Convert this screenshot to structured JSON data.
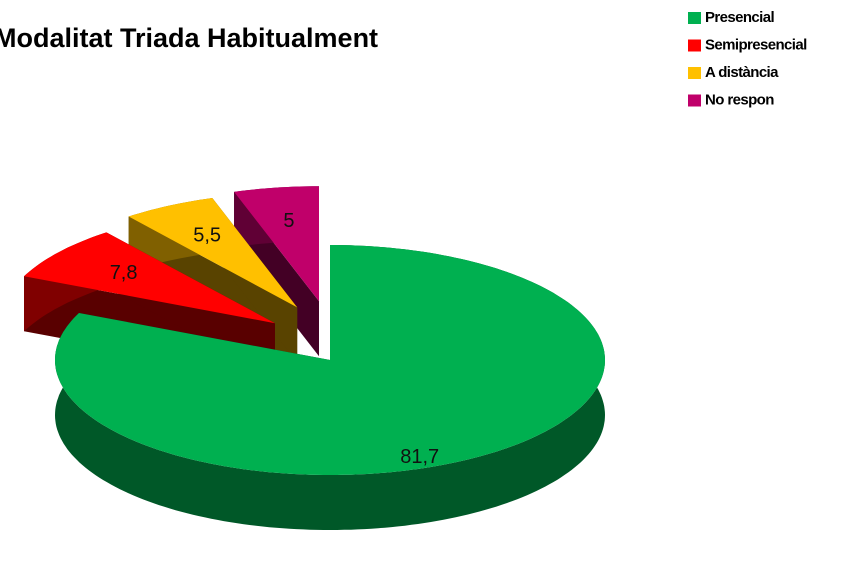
{
  "chart_data": {
    "type": "pie3d",
    "title": "Modalitat Triada Habitualment",
    "categories": [
      "Presencial",
      "Semipresencial",
      "A distància",
      "No respon"
    ],
    "values": [
      81.7,
      7.8,
      5.5,
      5
    ],
    "value_labels": [
      "81,7",
      "7,8",
      "5,5",
      "5"
    ],
    "colors": [
      "#00b050",
      "#ff0000",
      "#ffc000",
      "#c0006a"
    ],
    "legend": "top-right"
  }
}
